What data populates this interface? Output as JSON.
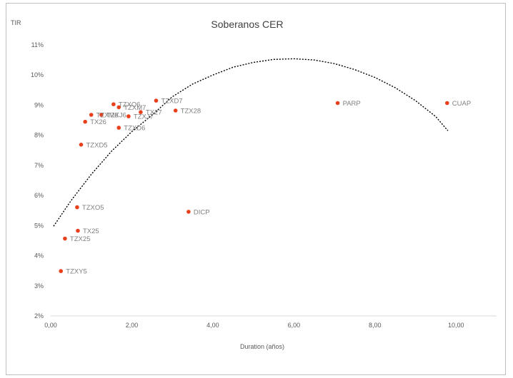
{
  "chart_data": {
    "type": "scatter",
    "title": "Soberanos CER",
    "xlabel": "Duration (años)",
    "ylabel": "TIR",
    "xlim": [
      0,
      11
    ],
    "ylim": [
      0.02,
      0.11
    ],
    "x_ticks": [
      "0,00",
      "2,00",
      "4,00",
      "6,00",
      "8,00",
      "10,00"
    ],
    "y_ticks": [
      "2%",
      "3%",
      "4%",
      "5%",
      "6%",
      "7%",
      "8%",
      "9%",
      "10%",
      "11%"
    ],
    "grid": false,
    "point_color": "#e8401c",
    "trendline": {
      "type": "polynomial-2",
      "style": "dotted",
      "color": "#000000",
      "x": [
        0.07,
        0.5,
        1.0,
        1.5,
        2.0,
        2.5,
        3.0,
        3.5,
        4.0,
        4.5,
        5.0,
        5.5,
        6.0,
        6.5,
        7.0,
        7.5,
        8.0,
        8.5,
        9.0,
        9.5,
        9.8
      ],
      "y": [
        0.0498,
        0.0583,
        0.067,
        0.0747,
        0.0812,
        0.0867,
        0.0928,
        0.097,
        0.1,
        0.1026,
        0.1042,
        0.1052,
        0.1054,
        0.105,
        0.1038,
        0.1018,
        0.0992,
        0.0958,
        0.0915,
        0.0862,
        0.0815
      ]
    },
    "points": [
      {
        "label": "TZXY5",
        "x": 0.25,
        "y": 0.0349
      },
      {
        "label": "TZX25",
        "x": 0.35,
        "y": 0.0457
      },
      {
        "label": "TX25",
        "x": 0.67,
        "y": 0.0483
      },
      {
        "label": "TZXO5",
        "x": 0.65,
        "y": 0.0561
      },
      {
        "label": "TZXD5",
        "x": 0.75,
        "y": 0.0769
      },
      {
        "label": "TX26",
        "x": 0.85,
        "y": 0.0845
      },
      {
        "label": "TZXM6",
        "x": 1.0,
        "y": 0.0868
      },
      {
        "label": "TZXJ6",
        "x": 1.25,
        "y": 0.0868
      },
      {
        "label": "TZXO6",
        "x": 1.55,
        "y": 0.0903
      },
      {
        "label": "TZXM7",
        "x": 1.68,
        "y": 0.0893
      },
      {
        "label": "TZXD6",
        "x": 1.68,
        "y": 0.0825
      },
      {
        "label": "TZXJ7",
        "x": 1.92,
        "y": 0.0863
      },
      {
        "label": "TX27",
        "x": 2.22,
        "y": 0.0877
      },
      {
        "label": "TZXD7",
        "x": 2.6,
        "y": 0.0915
      },
      {
        "label": "TZX28",
        "x": 3.08,
        "y": 0.0882
      },
      {
        "label": "DICP",
        "x": 3.4,
        "y": 0.0546
      },
      {
        "label": "PARP",
        "x": 7.08,
        "y": 0.0907
      },
      {
        "label": "CUAP",
        "x": 9.78,
        "y": 0.0907
      }
    ]
  }
}
